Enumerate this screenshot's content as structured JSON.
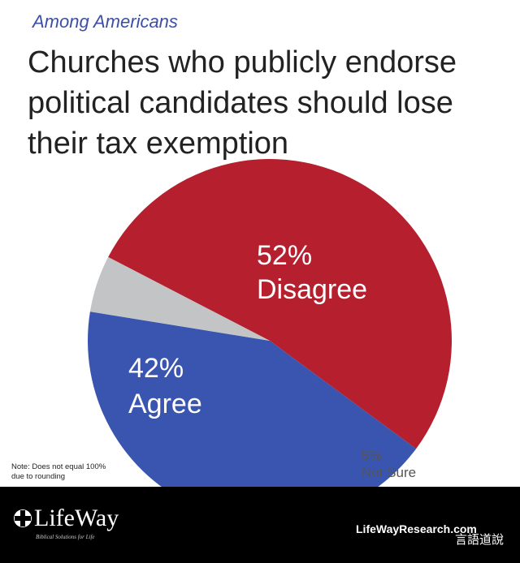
{
  "chart_data": {
    "type": "pie",
    "subtitle": "Among Americans",
    "title": "Churches who publicly endorse political candidates should lose their tax exemption",
    "categories": [
      "Disagree",
      "Agree",
      "Not Sure"
    ],
    "values": [
      52,
      42,
      5
    ],
    "value_labels": [
      "52%",
      "42%",
      "5%"
    ],
    "colors": [
      "#b51f2e",
      "#3a55b0",
      "#c3c4c6"
    ],
    "note": "Note: Does not equal 100% due to rounding"
  },
  "footer": {
    "brand": "LifeWay",
    "tagline": "Biblical Solutions for Life",
    "website": "LifeWayResearch.com",
    "watermark": "言語道說"
  }
}
